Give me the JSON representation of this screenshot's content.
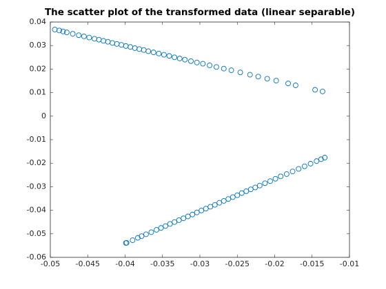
{
  "chart_data": {
    "type": "scatter",
    "title": "The scatter plot of the transformed data (linear separable)",
    "series": [
      {
        "color": "#0072bd",
        "x": [
          -0.0494,
          -0.0488,
          -0.0483,
          -0.0478,
          -0.047,
          -0.0462,
          -0.0455,
          -0.0448,
          -0.0441,
          -0.0435,
          -0.0429,
          -0.0423,
          -0.0417,
          -0.0411,
          -0.0405,
          -0.0399,
          -0.0393,
          -0.0387,
          -0.0381,
          -0.0375,
          -0.0369,
          -0.0362,
          -0.0355,
          -0.0348,
          -0.0341,
          -0.0334,
          -0.0327,
          -0.032,
          -0.0312,
          -0.0304,
          -0.0296,
          -0.0287,
          -0.0278,
          -0.0268,
          -0.0258,
          -0.0246,
          -0.0233,
          -0.0222,
          -0.021,
          -0.0198,
          -0.0182,
          -0.0172,
          -0.0146,
          -0.0136,
          -0.0399,
          -0.0398,
          -0.039,
          -0.0383,
          -0.0378,
          -0.0372,
          -0.0365,
          -0.0358,
          -0.0352,
          -0.0346,
          -0.034,
          -0.0334,
          -0.0328,
          -0.0322,
          -0.0316,
          -0.031,
          -0.0304,
          -0.0298,
          -0.0292,
          -0.0286,
          -0.028,
          -0.0274,
          -0.0268,
          -0.0262,
          -0.0256,
          -0.025,
          -0.0244,
          -0.0238,
          -0.0232,
          -0.0226,
          -0.022,
          -0.0213,
          -0.0206,
          -0.0199,
          -0.0192,
          -0.0184,
          -0.0176,
          -0.0168,
          -0.016,
          -0.0152,
          -0.0144,
          -0.0138,
          -0.0133
        ],
        "values": [
          0.0368,
          0.0364,
          0.036,
          0.0356,
          0.035,
          0.0344,
          0.0339,
          0.0334,
          0.0329,
          0.0325,
          0.032,
          0.0316,
          0.0311,
          0.0307,
          0.0303,
          0.0298,
          0.0294,
          0.0289,
          0.0285,
          0.0281,
          0.0276,
          0.0271,
          0.0266,
          0.0261,
          0.0256,
          0.025,
          0.0245,
          0.024,
          0.0234,
          0.0228,
          0.0223,
          0.0216,
          0.0209,
          0.0202,
          0.0195,
          0.0186,
          0.0176,
          0.0168,
          0.0159,
          0.0151,
          0.0139,
          0.0131,
          0.0112,
          0.0105,
          -0.0539,
          -0.0538,
          -0.0527,
          -0.0517,
          -0.051,
          -0.0502,
          -0.0493,
          -0.0483,
          -0.0475,
          -0.0467,
          -0.0458,
          -0.045,
          -0.0442,
          -0.0434,
          -0.0426,
          -0.0418,
          -0.0409,
          -0.0401,
          -0.0393,
          -0.0385,
          -0.0377,
          -0.0368,
          -0.036,
          -0.0352,
          -0.0344,
          -0.0336,
          -0.0327,
          -0.0319,
          -0.0311,
          -0.0303,
          -0.0295,
          -0.0285,
          -0.0276,
          -0.0266,
          -0.0256,
          -0.0246,
          -0.0235,
          -0.0224,
          -0.0213,
          -0.0202,
          -0.0191,
          -0.0183,
          -0.0176
        ]
      }
    ],
    "xlim": [
      -0.05,
      -0.01
    ],
    "xticks": [
      -0.05,
      -0.045,
      -0.04,
      -0.035,
      -0.03,
      -0.025,
      -0.02,
      -0.015,
      -0.01
    ],
    "ylim": [
      -0.06,
      0.04
    ],
    "yticks": [
      -0.06,
      -0.05,
      -0.04,
      -0.03,
      -0.02,
      -0.01,
      0,
      0.01,
      0.02,
      0.03,
      0.04
    ]
  }
}
